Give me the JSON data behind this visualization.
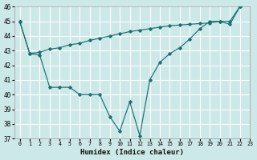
{
  "xlabel": "Humidex (Indice chaleur)",
  "bg_color": "#cde8e8",
  "line_color": "#1a7070",
  "grid_color": "#ffffff",
  "x_smooth": [
    0,
    1,
    2,
    3,
    4,
    5,
    6,
    7,
    8,
    9,
    10,
    11,
    12,
    13,
    14,
    15,
    16,
    17,
    18,
    19,
    20,
    21,
    22
  ],
  "y_smooth": [
    45.0,
    42.8,
    42.9,
    43.1,
    43.2,
    43.4,
    43.5,
    43.7,
    43.85,
    44.0,
    44.15,
    44.3,
    44.4,
    44.5,
    44.6,
    44.7,
    44.75,
    44.8,
    44.85,
    44.9,
    45.0,
    45.0,
    46.0
  ],
  "x_jagged": [
    0,
    1,
    2,
    3,
    4,
    5,
    6,
    7,
    8,
    9,
    10,
    11,
    12,
    13,
    14,
    15,
    16,
    17,
    18,
    19,
    20,
    21,
    22
  ],
  "y_jagged": [
    45.0,
    42.8,
    42.7,
    40.5,
    40.5,
    40.5,
    40.0,
    40.0,
    40.0,
    38.5,
    37.5,
    39.5,
    37.2,
    41.0,
    42.2,
    42.8,
    43.2,
    43.8,
    44.5,
    45.0,
    45.0,
    44.8,
    46.0
  ],
  "ylim": [
    37,
    46
  ],
  "yticks": [
    37,
    38,
    39,
    40,
    41,
    42,
    43,
    44,
    45,
    46
  ],
  "xlim": [
    -0.5,
    22.5
  ],
  "xticks": [
    0,
    1,
    2,
    3,
    4,
    5,
    6,
    7,
    8,
    9,
    10,
    11,
    12,
    13,
    14,
    15,
    16,
    17,
    18,
    19,
    20,
    21,
    22,
    23
  ]
}
